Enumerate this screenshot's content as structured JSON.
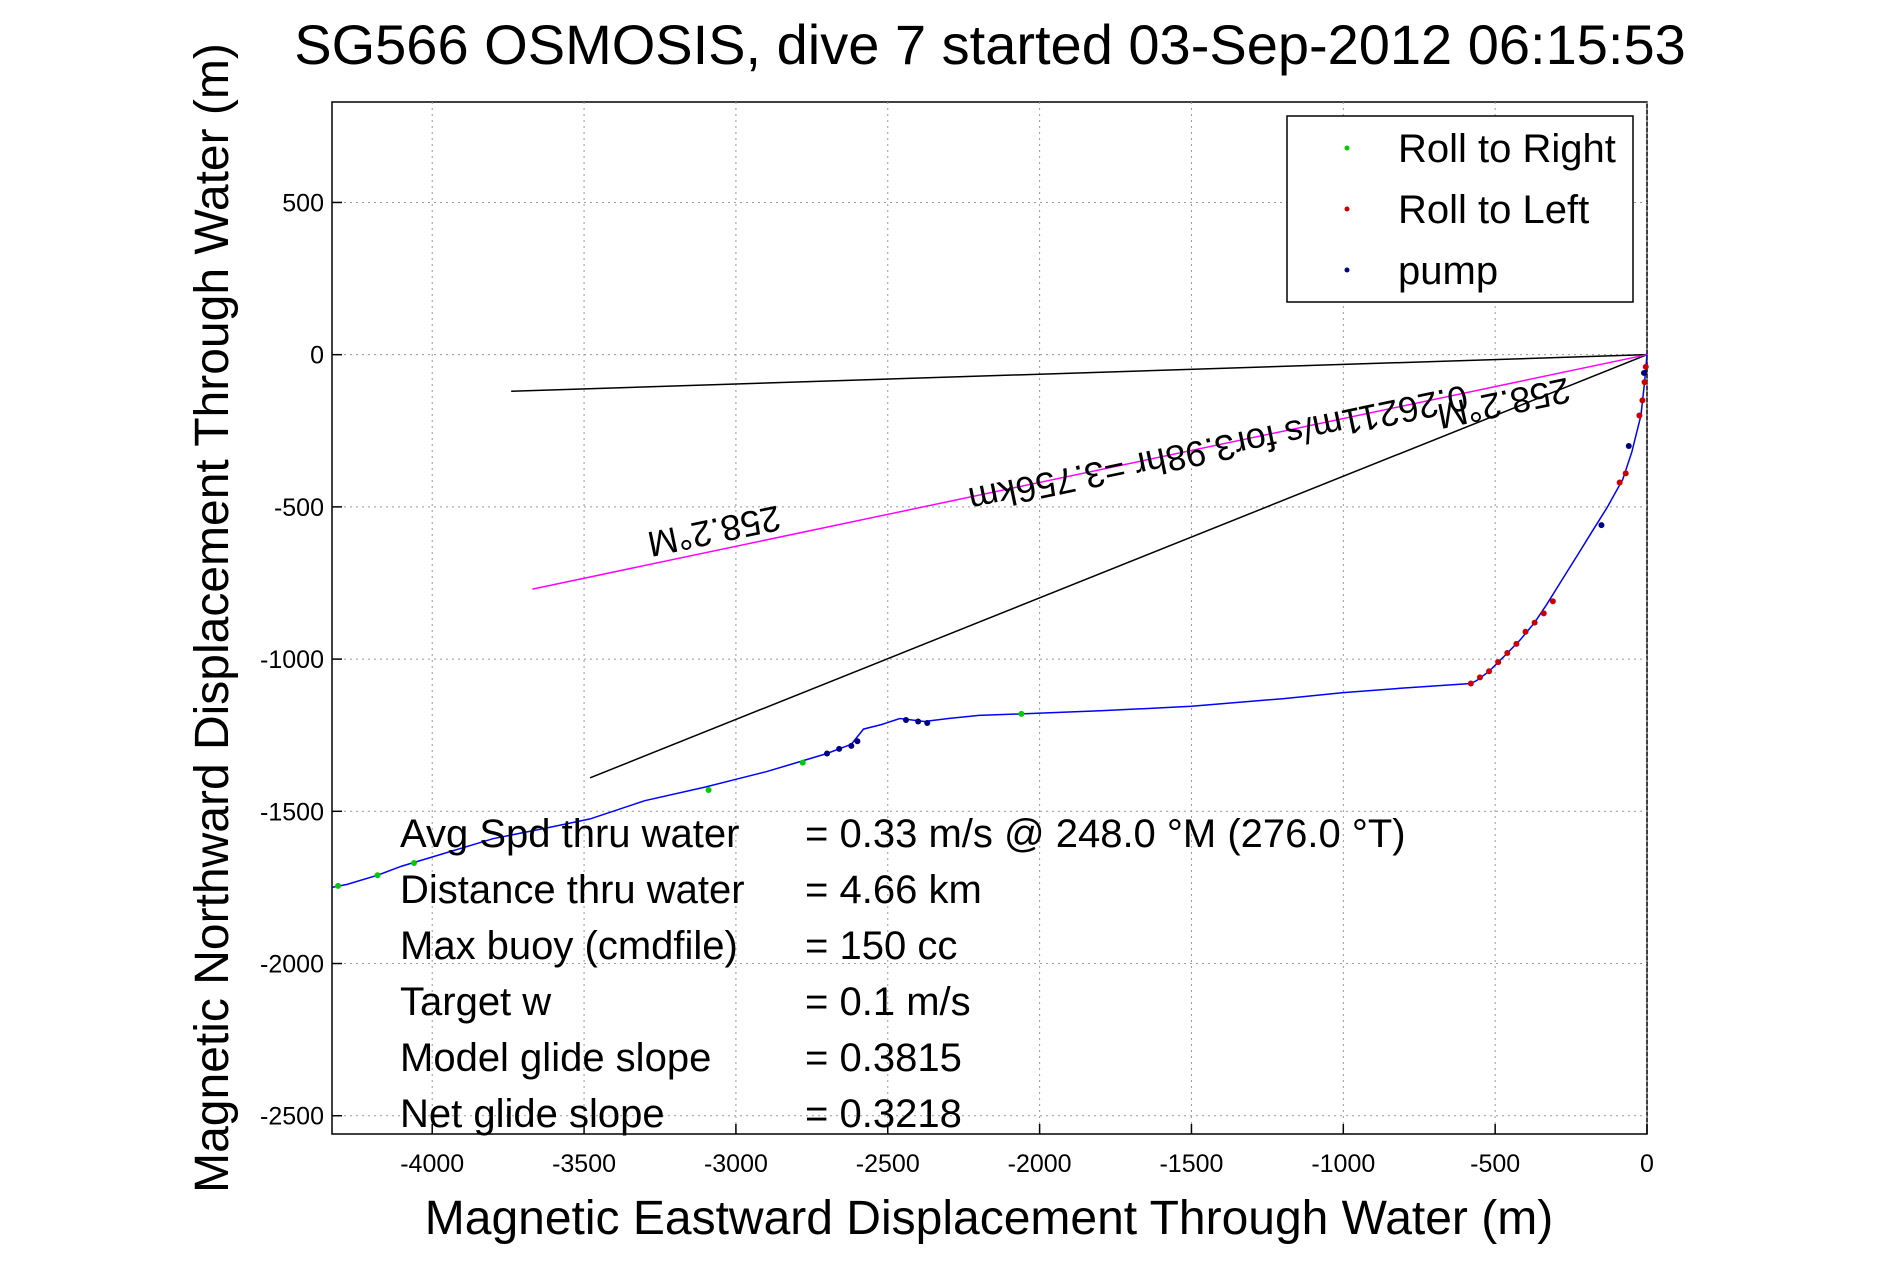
{
  "chart_data": {
    "type": "line",
    "title": "SG566 OSMOSIS, dive 7 started 03-Sep-2012 06:15:53",
    "xlabel": "Magnetic Eastward Displacement Through Water (m)",
    "ylabel": "Magnetic Northward Displacement Through Water (m)",
    "xlim": [
      -4330,
      0
    ],
    "ylim": [
      -2560,
      830
    ],
    "xticks": [
      -4000,
      -3500,
      -3000,
      -2500,
      -2000,
      -1500,
      -1000,
      -500,
      0
    ],
    "yticks": [
      500,
      0,
      -500,
      -1000,
      -1500,
      -2000,
      -2500
    ],
    "grid": true,
    "legend_position": "top-right",
    "legend": [
      {
        "label": "Roll to Right",
        "color": "#00cc00"
      },
      {
        "label": "Roll to Left",
        "color": "#cc0000"
      },
      {
        "label": "pump",
        "color": "#000080"
      }
    ],
    "series": [
      {
        "name": "track",
        "color": "#0000ff",
        "x": [
          -4330,
          -4280,
          -4180,
          -4100,
          -4000,
          -3800,
          -3600,
          -3480,
          -3300,
          -3100,
          -3000,
          -2900,
          -2800,
          -2700,
          -2620,
          -2580,
          -2520,
          -2460,
          -2420,
          -2380,
          -2300,
          -2200,
          -2060,
          -1800,
          -1500,
          -1200,
          -1000,
          -800,
          -580,
          -560,
          -520,
          -470,
          -420,
          -370,
          -330,
          -280,
          -230,
          -180,
          -130,
          -80,
          -50,
          -20,
          -8,
          0
        ],
        "y": [
          -1750,
          -1740,
          -1710,
          -1680,
          -1650,
          -1590,
          -1550,
          -1525,
          -1465,
          -1420,
          -1395,
          -1370,
          -1340,
          -1310,
          -1280,
          -1230,
          -1215,
          -1195,
          -1200,
          -1205,
          -1195,
          -1185,
          -1180,
          -1170,
          -1155,
          -1130,
          -1110,
          -1095,
          -1080,
          -1070,
          -1040,
          -990,
          -940,
          -880,
          -820,
          -740,
          -660,
          -580,
          -500,
          -410,
          -320,
          -200,
          -90,
          0
        ]
      }
    ],
    "markers": {
      "roll_right": [
        [
          -4310,
          -1745
        ],
        [
          -4180,
          -1710
        ],
        [
          -4060,
          -1670
        ],
        [
          -3090,
          -1430
        ],
        [
          -2780,
          -1340
        ],
        [
          -2060,
          -1180
        ]
      ],
      "roll_left": [
        [
          -580,
          -1080
        ],
        [
          -550,
          -1060
        ],
        [
          -520,
          -1040
        ],
        [
          -490,
          -1010
        ],
        [
          -460,
          -980
        ],
        [
          -430,
          -950
        ],
        [
          -400,
          -910
        ],
        [
          -370,
          -880
        ],
        [
          -340,
          -850
        ],
        [
          -310,
          -810
        ],
        [
          -90,
          -420
        ],
        [
          -70,
          -390
        ],
        [
          -25,
          -200
        ],
        [
          -15,
          -150
        ],
        [
          -8,
          -90
        ],
        [
          -4,
          -40
        ]
      ],
      "pump": [
        [
          -2700,
          -1310
        ],
        [
          -2660,
          -1295
        ],
        [
          -2620,
          -1285
        ],
        [
          -2600,
          -1270
        ],
        [
          -2440,
          -1200
        ],
        [
          -2400,
          -1205
        ],
        [
          -2370,
          -1210
        ],
        [
          -150,
          -560
        ],
        [
          -60,
          -300
        ],
        [
          -10,
          -60
        ]
      ]
    },
    "lines": [
      {
        "color": "#000000",
        "x": [
          -3740,
          0
        ],
        "y": [
          -120,
          0
        ]
      },
      {
        "color": "#000000",
        "x": [
          -3480,
          0
        ],
        "y": [
          -1390,
          0
        ]
      },
      {
        "color": "#ff00ff",
        "x": [
          -3670,
          0
        ],
        "y": [
          -770,
          0
        ]
      }
    ],
    "annotations": [
      {
        "text": "258.2°M",
        "x": -3080,
        "y": -540,
        "rotation": 168.2
      },
      {
        "text": "0.26211m/s for3.98hr =3.756km",
        "x": -1420,
        "y": -270,
        "rotation": 168.2
      },
      {
        "text": "258.2°M",
        "x": -480,
        "y": -120,
        "rotation": 168.2
      }
    ],
    "stats": [
      {
        "label": "Avg Spd thru water",
        "value": "=  0.33 m/s @ 248.0 °M (276.0 °T)"
      },
      {
        "label": "Distance thru water",
        "value": "=  4.66 km"
      },
      {
        "label": "Max buoy (cmdfile)",
        "value": "= 150 cc"
      },
      {
        "label": "Target w",
        "value": "= 0.1 m/s"
      },
      {
        "label": "Model glide slope",
        "value": "= 0.3815"
      },
      {
        "label": "Net glide slope",
        "value": "= 0.3218"
      }
    ]
  }
}
